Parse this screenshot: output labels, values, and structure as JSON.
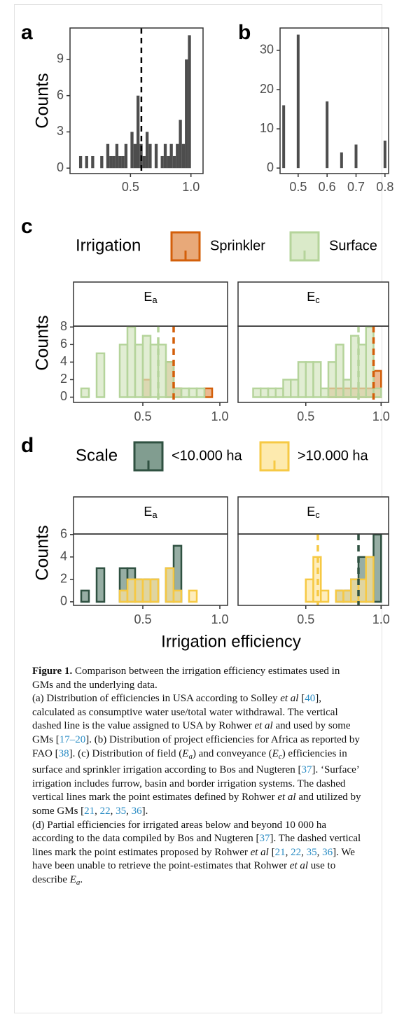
{
  "chart_data": [
    {
      "type": "histogram",
      "panel_label": "a",
      "ylabel": "Counts",
      "color": "#4d4d4d",
      "bins": [
        0.075,
        0.1,
        0.125,
        0.15,
        0.175,
        0.2,
        0.225,
        0.25,
        0.275,
        0.3,
        0.325,
        0.35,
        0.375,
        0.4,
        0.425,
        0.45,
        0.475,
        0.5,
        0.525,
        0.55,
        0.575,
        0.6,
        0.625,
        0.65,
        0.675,
        0.7,
        0.725,
        0.75,
        0.775,
        0.8,
        0.825,
        0.85,
        0.875,
        0.9,
        0.925,
        0.95,
        0.975,
        1.0
      ],
      "values": [
        1,
        0,
        1,
        0,
        1,
        0,
        0,
        1,
        0,
        2,
        1,
        1,
        2,
        1,
        1,
        2,
        0,
        3,
        2,
        6,
        2,
        1,
        3,
        2,
        0,
        2,
        0,
        1,
        2,
        1,
        2,
        1,
        2,
        4,
        2,
        9,
        11
      ],
      "vline": 0.59,
      "xlim": [
        0.0,
        1.1
      ],
      "ylim": [
        -0.45,
        11.6
      ],
      "xticks": [
        0.5,
        {
          "value": 1,
          "label": "1.0"
        }
      ],
      "yticks": [
        0,
        3,
        6,
        9
      ]
    },
    {
      "type": "bar",
      "panel_label": "b",
      "color": "#4d4d4d",
      "x": [
        0.45,
        0.5,
        0.6,
        0.65,
        0.7,
        0.8
      ],
      "values": [
        16,
        34,
        17,
        4,
        6,
        7
      ],
      "xlim": [
        0.4375,
        0.8125
      ],
      "ylim": [
        -1.4,
        35.7
      ],
      "xticks": [
        0.5,
        0.6,
        0.7,
        0.8
      ],
      "yticks": [
        0,
        10,
        20,
        30
      ]
    },
    {
      "type": "faceted_histogram",
      "panel_label": "c",
      "ylabel": "Counts",
      "legend_title": "Irrigation",
      "facets": [
        {
          "label": "E",
          "subscript": "a"
        },
        {
          "label": "E",
          "subscript": "c"
        }
      ],
      "bins": [
        0.1,
        0.15,
        0.2,
        0.25,
        0.3,
        0.35,
        0.4,
        0.45,
        0.5,
        0.55,
        0.6,
        0.65,
        0.7,
        0.75,
        0.8,
        0.85,
        0.9,
        0.95,
        1.0
      ],
      "series": [
        {
          "name": "Sprinkler",
          "color": "#e49a62",
          "edge": "#d35f0a",
          "values": [
            [
              0,
              0,
              0,
              0,
              0,
              0,
              0,
              0,
              2,
              0,
              0,
              4,
              1,
              0,
              0,
              0,
              1,
              0
            ],
            [
              0,
              0,
              0,
              0,
              0,
              0,
              0,
              0,
              0,
              0,
              0,
              1,
              1,
              1,
              1,
              1,
              1,
              3
            ]
          ],
          "vlines": [
            0.7,
            0.95
          ]
        },
        {
          "name": "Surface",
          "color": "#d4e6c0",
          "edge": "#b5d49b",
          "values": [
            [
              1,
              0,
              5,
              0,
              0,
              6,
              8,
              6,
              7,
              6,
              6,
              4,
              1,
              1,
              1,
              1,
              0,
              0
            ],
            [
              0,
              1,
              1,
              1,
              1,
              2,
              2,
              4,
              4,
              4,
              1,
              4,
              6,
              2,
              7,
              6,
              8,
              1
            ]
          ],
          "vlines": [
            0.6,
            0.85
          ]
        }
      ],
      "xlim": [
        0.05,
        1.05
      ],
      "ylim": [
        -0.6,
        8.1
      ],
      "xticks": [
        0.5,
        {
          "value": 1,
          "label": "1.0"
        }
      ],
      "yticks": [
        0,
        2,
        4,
        6,
        8
      ]
    },
    {
      "type": "faceted_histogram",
      "panel_label": "d",
      "ylabel": "Counts",
      "legend_title": "Scale",
      "xlabel": "Irrigation efficiency",
      "facets": [
        {
          "label": "E",
          "subscript": "a"
        },
        {
          "label": "E",
          "subscript": "c"
        }
      ],
      "bins": [
        0.1,
        0.15,
        0.2,
        0.25,
        0.3,
        0.35,
        0.4,
        0.45,
        0.5,
        0.55,
        0.6,
        0.65,
        0.7,
        0.75,
        0.8,
        0.85,
        0.9,
        0.95,
        1.0
      ],
      "series": [
        {
          "name": "<10.000 ha",
          "color": "#6b8c7d",
          "edge": "#2f5141",
          "values": [
            [
              1,
              0,
              3,
              0,
              0,
              3,
              3,
              2,
              2,
              2,
              0,
              3,
              5,
              0,
              0,
              0,
              0,
              0
            ],
            [
              0,
              0,
              0,
              0,
              0,
              0,
              0,
              0,
              0,
              0,
              0,
              0,
              1,
              1,
              2,
              4,
              4,
              6
            ]
          ],
          "vlines": [
            null,
            0.85
          ]
        },
        {
          "name": ">10.000 ha",
          "color": "#fde6a0",
          "edge": "#f6c944",
          "values": [
            [
              0,
              0,
              0,
              0,
              0,
              1,
              2,
              2,
              2,
              2,
              0,
              3,
              1,
              0,
              1,
              0,
              0,
              0
            ],
            [
              0,
              0,
              0,
              0,
              0,
              0,
              0,
              0,
              2,
              4,
              1,
              0,
              1,
              1,
              2,
              2,
              4,
              0
            ]
          ],
          "vlines": [
            null,
            0.58
          ]
        }
      ],
      "xlim": [
        0.05,
        1.05
      ],
      "ylim": [
        -0.32,
        6.05
      ],
      "xticks": [
        0.5,
        {
          "value": 1,
          "label": "1.0"
        }
      ],
      "yticks": [
        0,
        2,
        4,
        6
      ]
    }
  ],
  "caption": [
    [
      {
        "text": "Figure 1.",
        "style": "b"
      },
      {
        "text": " Comparison between the irrigation efficiency estimates used in GMs and the underlying data."
      }
    ],
    [
      {
        "text": "(a) Distribution of efficiencies in USA according to Solley "
      },
      {
        "text": "et al",
        "style": "i"
      },
      {
        "text": " ["
      },
      {
        "text": "40",
        "style": "ref"
      },
      {
        "text": "], calculated as consumptive water use/total water withdrawal. The vertical dashed line is the value assigned to USA by Rohwer "
      },
      {
        "text": "et al",
        "style": "i"
      },
      {
        "text": " and used by some GMs ["
      },
      {
        "text": "17–20",
        "style": "ref"
      },
      {
        "text": "]. (b) Distribution of project efficiencies for Africa as reported by FAO ["
      },
      {
        "text": "38",
        "style": "ref"
      },
      {
        "text": "]. (c) Distribution of field ("
      },
      {
        "text": "E",
        "style": "i"
      },
      {
        "text": "a",
        "style": "isub"
      },
      {
        "text": ") and conveyance ("
      },
      {
        "text": "E",
        "style": "i"
      },
      {
        "text": "c",
        "style": "isub"
      },
      {
        "text": ") efficiencies in surface and sprinkler irrigation according to Bos and Nugteren ["
      },
      {
        "text": "37",
        "style": "ref"
      },
      {
        "text": "]. ‘Surface’ irrigation includes furrow, basin and border irrigation systems. The dashed vertical lines mark the point estimates defined by Rohwer "
      },
      {
        "text": "et al",
        "style": "i"
      },
      {
        "text": " and utilized by some GMs ["
      },
      {
        "text": "21",
        "style": "ref"
      },
      {
        "text": ", "
      },
      {
        "text": "22",
        "style": "ref"
      },
      {
        "text": ", "
      },
      {
        "text": "35",
        "style": "ref"
      },
      {
        "text": ", "
      },
      {
        "text": "36",
        "style": "ref"
      },
      {
        "text": "]."
      }
    ],
    [
      {
        "text": "(d) Partial efficiencies for irrigated areas below and beyond 10 000 ha according to the data compiled by Bos and Nugteren ["
      },
      {
        "text": "37",
        "style": "ref"
      },
      {
        "text": "]. The dashed vertical lines mark the point estimates proposed by Rohwer "
      },
      {
        "text": "et al",
        "style": "i"
      },
      {
        "text": " ["
      },
      {
        "text": "21",
        "style": "ref"
      },
      {
        "text": ", "
      },
      {
        "text": "22",
        "style": "ref"
      },
      {
        "text": ", "
      },
      {
        "text": "35",
        "style": "ref"
      },
      {
        "text": ", "
      },
      {
        "text": "36",
        "style": "ref"
      },
      {
        "text": "]. We have been unable to retrieve the point-estimates that Rohwer "
      },
      {
        "text": "et al",
        "style": "i"
      },
      {
        "text": " use to describe "
      },
      {
        "text": "E",
        "style": "i"
      },
      {
        "text": "a",
        "style": "isub"
      },
      {
        "text": "."
      }
    ]
  ]
}
